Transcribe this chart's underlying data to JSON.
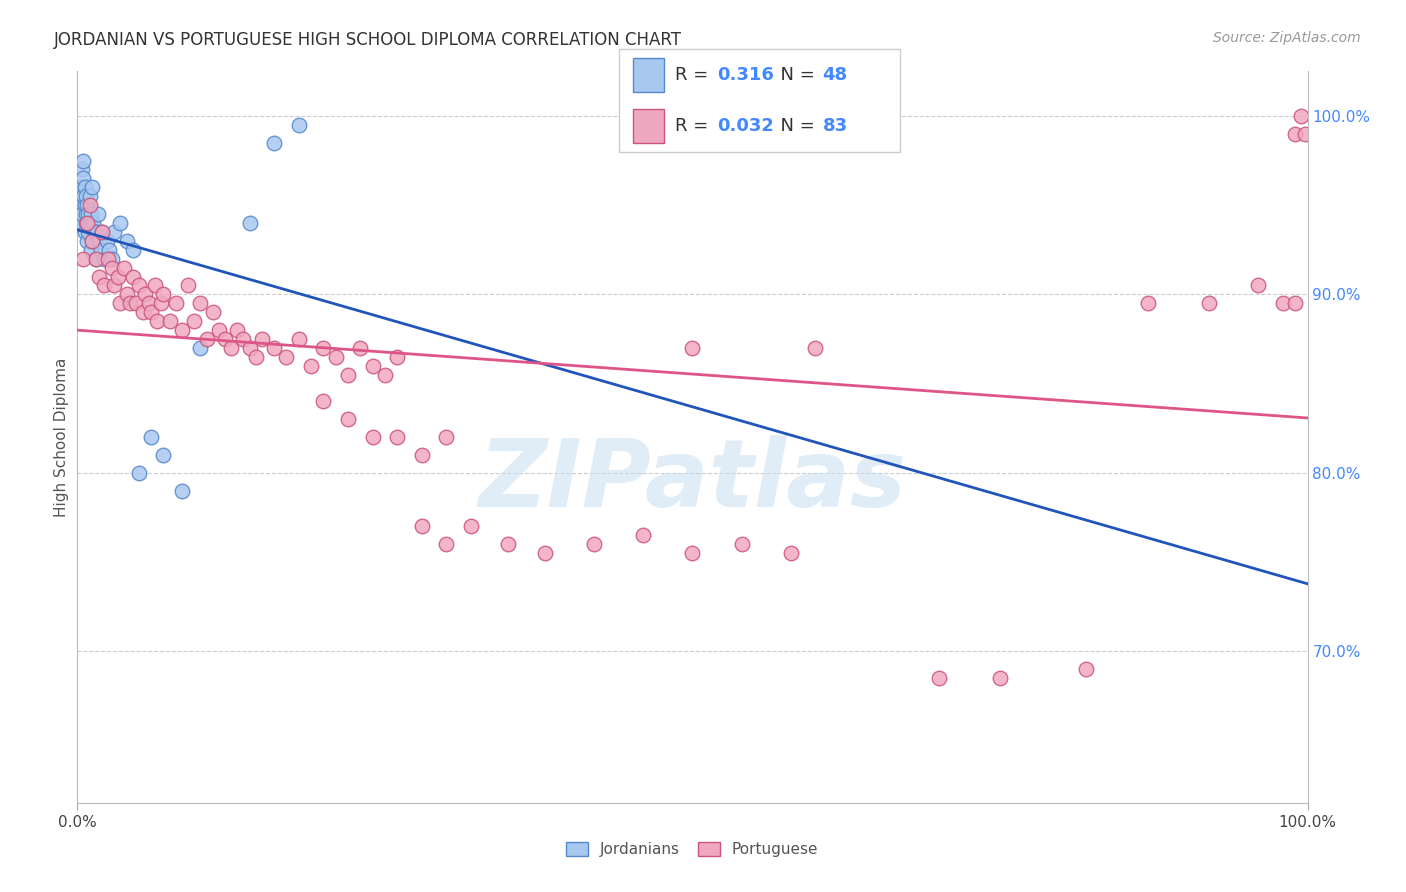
{
  "title": "JORDANIAN VS PORTUGUESE HIGH SCHOOL DIPLOMA CORRELATION CHART",
  "source": "Source: ZipAtlas.com",
  "ylabel": "High School Diploma",
  "xlim": [
    0.0,
    1.0
  ],
  "ylim": [
    0.615,
    1.025
  ],
  "ytick_values": [
    0.7,
    0.8,
    0.9,
    1.0
  ],
  "ytick_labels": [
    "70.0%",
    "80.0%",
    "90.0%",
    "100.0%"
  ],
  "jordanian_color": "#a8c8f0",
  "jordanian_edge": "#5588cc",
  "portuguese_color": "#f0a8c0",
  "portuguese_edge": "#cc5577",
  "trend_jordanian_color": "#2255bb",
  "trend_portuguese_color": "#dd5588",
  "watermark_text": "ZIPatlas",
  "background_color": "#ffffff",
  "jordanian_x": [
    0.002,
    0.003,
    0.003,
    0.004,
    0.004,
    0.005,
    0.005,
    0.005,
    0.006,
    0.006,
    0.006,
    0.007,
    0.007,
    0.007,
    0.008,
    0.008,
    0.009,
    0.009,
    0.01,
    0.01,
    0.011,
    0.011,
    0.012,
    0.012,
    0.013,
    0.014,
    0.015,
    0.016,
    0.017,
    0.018,
    0.019,
    0.02,
    0.022,
    0.024,
    0.026,
    0.028,
    0.03,
    0.035,
    0.04,
    0.045,
    0.05,
    0.06,
    0.07,
    0.085,
    0.1,
    0.14,
    0.16,
    0.18
  ],
  "jordanian_y": [
    0.94,
    0.96,
    0.95,
    0.97,
    0.945,
    0.955,
    0.965,
    0.975,
    0.95,
    0.96,
    0.935,
    0.945,
    0.955,
    0.94,
    0.93,
    0.95,
    0.945,
    0.935,
    0.955,
    0.94,
    0.925,
    0.945,
    0.93,
    0.96,
    0.94,
    0.935,
    0.92,
    0.935,
    0.945,
    0.93,
    0.925,
    0.935,
    0.92,
    0.93,
    0.925,
    0.92,
    0.935,
    0.94,
    0.93,
    0.925,
    0.8,
    0.82,
    0.81,
    0.79,
    0.87,
    0.94,
    0.985,
    0.995
  ],
  "portuguese_x": [
    0.005,
    0.008,
    0.01,
    0.012,
    0.015,
    0.018,
    0.02,
    0.022,
    0.025,
    0.028,
    0.03,
    0.033,
    0.035,
    0.038,
    0.04,
    0.043,
    0.045,
    0.048,
    0.05,
    0.053,
    0.055,
    0.058,
    0.06,
    0.063,
    0.065,
    0.068,
    0.07,
    0.075,
    0.08,
    0.085,
    0.09,
    0.095,
    0.1,
    0.105,
    0.11,
    0.115,
    0.12,
    0.125,
    0.13,
    0.135,
    0.14,
    0.145,
    0.15,
    0.16,
    0.17,
    0.18,
    0.19,
    0.2,
    0.21,
    0.22,
    0.23,
    0.24,
    0.25,
    0.26,
    0.28,
    0.3,
    0.32,
    0.35,
    0.38,
    0.42,
    0.46,
    0.5,
    0.54,
    0.58,
    0.2,
    0.22,
    0.24,
    0.26,
    0.28,
    0.3,
    0.5,
    0.6,
    0.7,
    0.75,
    0.82,
    0.87,
    0.92,
    0.96,
    0.98,
    0.99,
    0.99,
    0.995,
    0.998
  ],
  "portuguese_y": [
    0.92,
    0.94,
    0.95,
    0.93,
    0.92,
    0.91,
    0.935,
    0.905,
    0.92,
    0.915,
    0.905,
    0.91,
    0.895,
    0.915,
    0.9,
    0.895,
    0.91,
    0.895,
    0.905,
    0.89,
    0.9,
    0.895,
    0.89,
    0.905,
    0.885,
    0.895,
    0.9,
    0.885,
    0.895,
    0.88,
    0.905,
    0.885,
    0.895,
    0.875,
    0.89,
    0.88,
    0.875,
    0.87,
    0.88,
    0.875,
    0.87,
    0.865,
    0.875,
    0.87,
    0.865,
    0.875,
    0.86,
    0.87,
    0.865,
    0.855,
    0.87,
    0.86,
    0.855,
    0.865,
    0.77,
    0.76,
    0.77,
    0.76,
    0.755,
    0.76,
    0.765,
    0.755,
    0.76,
    0.755,
    0.84,
    0.83,
    0.82,
    0.82,
    0.81,
    0.82,
    0.87,
    0.87,
    0.685,
    0.685,
    0.69,
    0.895,
    0.895,
    0.905,
    0.895,
    0.895,
    0.99,
    1.0,
    0.99
  ]
}
